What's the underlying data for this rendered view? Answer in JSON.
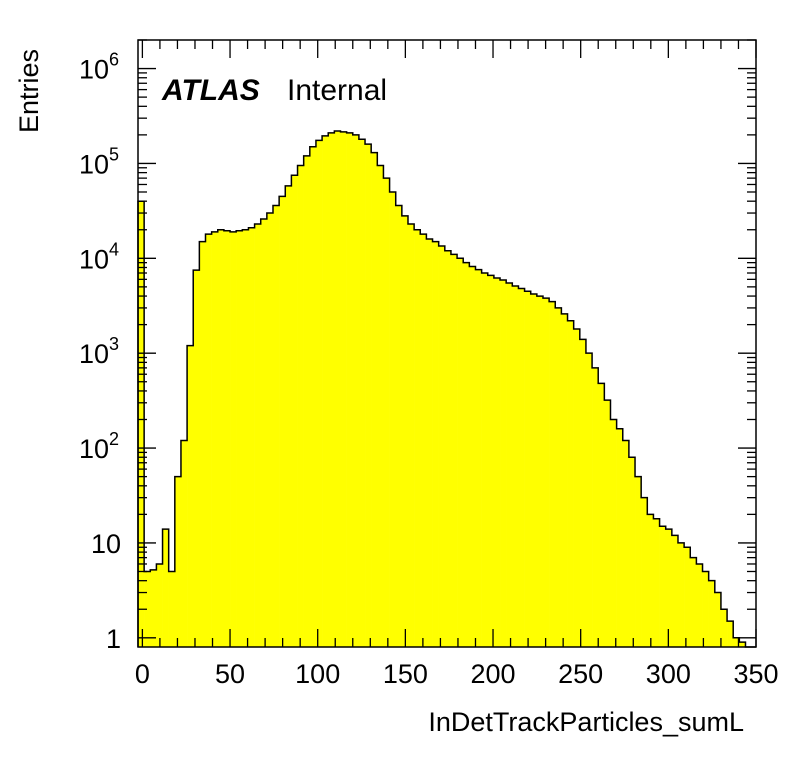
{
  "chart_data": {
    "type": "bar",
    "histogram_style": "step-filled",
    "fill_color": "#ffff00",
    "line_color": "#000000",
    "xlabel": "InDetTrackParticles_sumL",
    "ylabel": "Entries",
    "xlim": [
      -2.5,
      350
    ],
    "ylim": [
      0.8,
      2000000
    ],
    "y_scale": "log",
    "x_ticks": [
      "0",
      "50",
      "100",
      "150",
      "200",
      "250",
      "300",
      "350"
    ],
    "y_ticks": [
      {
        "base": "1",
        "exp": ""
      },
      {
        "base": "10",
        "exp": ""
      },
      {
        "base": "10",
        "exp": "2"
      },
      {
        "base": "10",
        "exp": "3"
      },
      {
        "base": "10",
        "exp": "4"
      },
      {
        "base": "10",
        "exp": "5"
      },
      {
        "base": "10",
        "exp": "6"
      }
    ],
    "annotation": {
      "bold": "ATLAS",
      "normal": "Internal"
    },
    "bin_width": 3.5,
    "bin_start": -2.5,
    "values": [
      40000,
      5,
      5.2,
      6,
      14,
      5,
      50,
      120,
      1200,
      7500,
      15000,
      18000,
      19000,
      20000,
      19500,
      19000,
      19500,
      20000,
      21000,
      23000,
      26000,
      30000,
      36000,
      45000,
      58000,
      75000,
      95000,
      120000,
      150000,
      175000,
      195000,
      210000,
      220000,
      215000,
      210000,
      200000,
      180000,
      160000,
      130000,
      95000,
      70000,
      50000,
      36000,
      28000,
      23000,
      20000,
      18000,
      16000,
      15000,
      13500,
      12000,
      11000,
      10000,
      9000,
      8200,
      7600,
      7000,
      6600,
      6200,
      5900,
      5500,
      5100,
      4800,
      4500,
      4200,
      4000,
      3800,
      3500,
      3000,
      2600,
      2200,
      1800,
      1400,
      1000,
      700,
      480,
      320,
      200,
      160,
      120,
      80,
      50,
      30,
      20,
      18,
      15,
      14,
      12,
      10,
      9,
      7,
      6,
      5,
      4,
      3,
      2,
      1.5,
      1,
      0.9,
      0.8,
      0.8
    ]
  }
}
